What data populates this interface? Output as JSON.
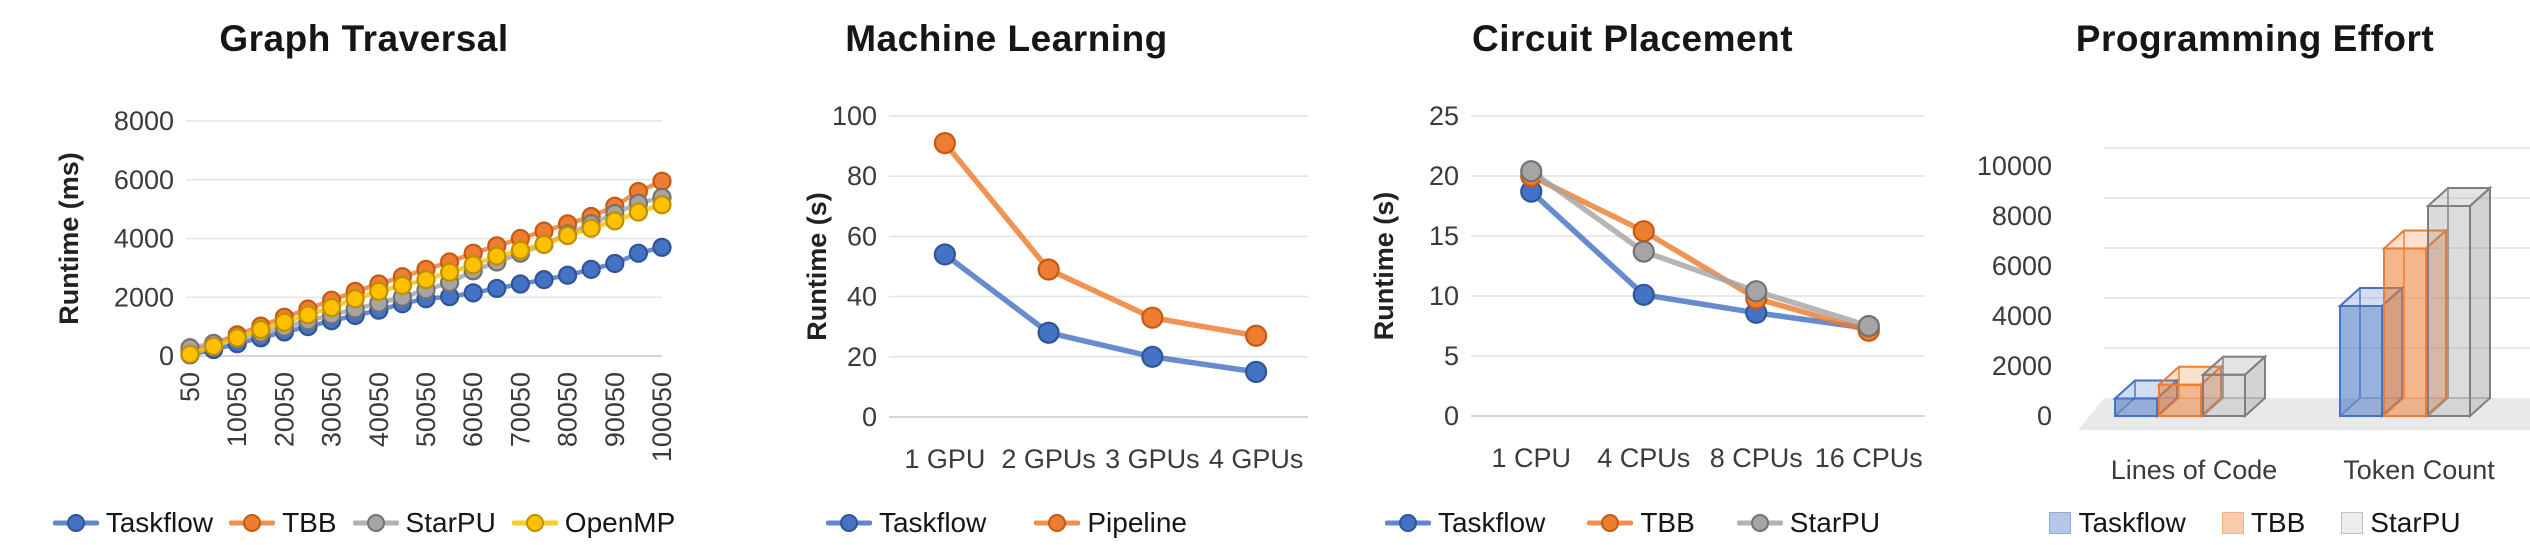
{
  "chart_data": [
    {
      "type": "line",
      "title": "Graph Traversal",
      "ylabel": "Runtime (ms)",
      "xlabel": "",
      "y_ticks": [
        0,
        2000,
        4000,
        6000,
        8000
      ],
      "ylim": [
        0,
        8000
      ],
      "grid": true,
      "legend_position": "bottom",
      "legend_style": "line",
      "x_mode": "numeric-dense",
      "x_points": 21,
      "x_tick_labels": [
        "50",
        "10050",
        "20050",
        "30050",
        "40050",
        "50050",
        "60050",
        "70050",
        "80050",
        "90050",
        "100050"
      ],
      "x_labels_rotated": true,
      "series": [
        {
          "name": "Taskflow",
          "color": "#4472C4",
          "edge": "#2F5597",
          "values": [
            40,
            220,
            420,
            620,
            820,
            1000,
            1200,
            1380,
            1560,
            1780,
            1950,
            2020,
            2150,
            2300,
            2450,
            2600,
            2750,
            2950,
            3150,
            3500,
            3700
          ]
        },
        {
          "name": "TBB",
          "color": "#ED7D31",
          "edge": "#C55A11",
          "values": [
            120,
            420,
            720,
            1020,
            1320,
            1600,
            1900,
            2200,
            2450,
            2700,
            2950,
            3200,
            3500,
            3750,
            4000,
            4250,
            4500,
            4750,
            5100,
            5600,
            5950
          ]
        },
        {
          "name": "StarPU",
          "color": "#A5A5A5",
          "edge": "#767171",
          "values": [
            280,
            430,
            600,
            780,
            980,
            1200,
            1400,
            1600,
            1800,
            2000,
            2250,
            2500,
            2900,
            3200,
            3500,
            3800,
            4150,
            4500,
            4850,
            5200,
            5400
          ]
        },
        {
          "name": "OpenMP",
          "color": "#FFC000",
          "edge": "#BF8F00",
          "values": [
            60,
            330,
            620,
            900,
            1150,
            1400,
            1650,
            1950,
            2200,
            2400,
            2600,
            2850,
            3100,
            3400,
            3600,
            3800,
            4100,
            4350,
            4600,
            4900,
            5150
          ]
        }
      ]
    },
    {
      "type": "line",
      "title": "Machine Learning",
      "ylabel": "Runtime (s)",
      "xlabel": "",
      "y_ticks": [
        0,
        20,
        40,
        60,
        80,
        100
      ],
      "ylim": [
        0,
        100
      ],
      "grid": true,
      "legend_position": "bottom",
      "legend_style": "line",
      "x_mode": "categories",
      "categories": [
        "1 GPU",
        "2 GPUs",
        "3 GPUs",
        "4 GPUs"
      ],
      "series": [
        {
          "name": "Taskflow",
          "color": "#4472C4",
          "edge": "#2F5597",
          "values": [
            54,
            28,
            20,
            15
          ]
        },
        {
          "name": "Pipeline",
          "color": "#ED7D31",
          "edge": "#C55A11",
          "values": [
            91,
            49,
            33,
            27
          ]
        }
      ]
    },
    {
      "type": "line",
      "title": "Circuit Placement",
      "ylabel": "Runtime (s)",
      "xlabel": "",
      "y_ticks": [
        0,
        5,
        10,
        15,
        20,
        25
      ],
      "ylim": [
        0,
        25
      ],
      "grid": true,
      "legend_position": "bottom",
      "legend_style": "line",
      "x_mode": "categories",
      "categories": [
        "1 CPU",
        "4 CPUs",
        "8 CPUs",
        "16 CPUs"
      ],
      "series": [
        {
          "name": "Taskflow",
          "color": "#4472C4",
          "edge": "#2F5597",
          "values": [
            18.7,
            10.1,
            8.6,
            7.3
          ]
        },
        {
          "name": "TBB",
          "color": "#ED7D31",
          "edge": "#C55A11",
          "values": [
            20,
            15.4,
            9.8,
            7.1
          ]
        },
        {
          "name": "StarPU",
          "color": "#A5A5A5",
          "edge": "#767171",
          "values": [
            20.4,
            13.7,
            10.4,
            7.5
          ]
        }
      ]
    },
    {
      "type": "bar",
      "title": "Programming Effort",
      "ylabel": "",
      "xlabel": "",
      "bar_style": "3d-transparent-box",
      "y_ticks": [
        0,
        2000,
        4000,
        6000,
        8000,
        10000
      ],
      "ylim": [
        0,
        10000
      ],
      "grid": true,
      "legend_position": "bottom",
      "legend_style": "square",
      "x_mode": "categories",
      "categories": [
        "Lines of Code",
        "Token Count"
      ],
      "series": [
        {
          "name": "Taskflow",
          "color": "#4472C4",
          "edge": "#4472C4",
          "swatch_fill": "#B4C7E7",
          "swatch_border": "#8FAADC",
          "values": [
            700,
            4400
          ]
        },
        {
          "name": "TBB",
          "color": "#ED7D31",
          "edge": "#ED7D31",
          "swatch_fill": "#F8CBAD",
          "swatch_border": "#F4B183",
          "values": [
            1250,
            6700
          ]
        },
        {
          "name": "StarPU",
          "color": "#8C8C8C",
          "edge": "#7F7F7F",
          "swatch_fill": "#EDEDED",
          "swatch_border": "#BFBFBF",
          "values": [
            1650,
            8400
          ]
        }
      ]
    }
  ],
  "style": {
    "gridline_color": "#E4E4E4",
    "axis_line_color": "#C9C9C9",
    "tick_label_color": "#3b3b3b",
    "floor_color": "#E9E9E9"
  }
}
